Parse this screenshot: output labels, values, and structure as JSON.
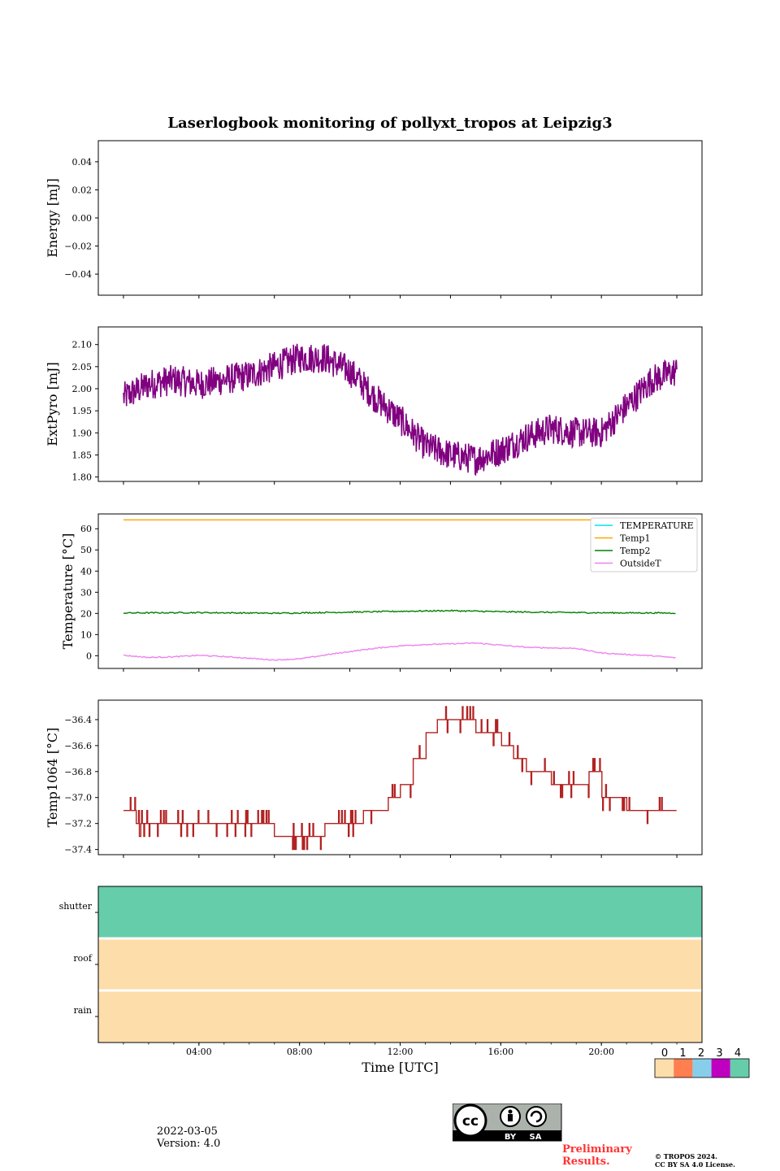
{
  "title": "Laserlogbook monitoring of pollyxt_tropos at Leipzig3",
  "footer": {
    "date": "2022-03-05",
    "version": "Version: 4.0",
    "preliminary_line1": "Preliminary",
    "preliminary_line2": "Results.",
    "copyright_line1": "© TROPOS 2024.",
    "copyright_line2": "CC BY SA 4.0 License.",
    "license_badge": {
      "icon": "cc-by-sa-icon",
      "by": "BY",
      "sa": "SA"
    }
  },
  "colors": {
    "extpyro": "#800080",
    "temperature": "#00e5ee",
    "temp1": "#ffa500",
    "temp2": "#008000",
    "outsideT": "#ee82ee",
    "temp1064": "#b22222"
  },
  "chart_data": [
    {
      "type": "line",
      "ylabel": "Energy [mJ]",
      "ylim": [
        -0.055,
        0.055
      ],
      "yticks": [
        "0.04",
        "0.02",
        "0.00",
        "−0.02",
        "−0.04"
      ],
      "ytick_values": [
        0.04,
        0.02,
        0.0,
        -0.02,
        -0.04
      ],
      "series": []
    },
    {
      "type": "line",
      "ylabel": "ExtPyro [mJ]",
      "ylim": [
        1.79,
        2.14
      ],
      "yticks": [
        "2.10",
        "2.05",
        "2.00",
        "1.95",
        "1.90",
        "1.85",
        "1.80"
      ],
      "ytick_values": [
        2.1,
        2.05,
        2.0,
        1.95,
        1.9,
        1.85,
        1.8
      ],
      "series": [
        {
          "name": "ExtPyro",
          "color": "#800080",
          "x": [
            1,
            2,
            3,
            4,
            5,
            6,
            7,
            8,
            9,
            10,
            11,
            12,
            13,
            14,
            15,
            16,
            17,
            18,
            19,
            20,
            21,
            22,
            23
          ],
          "y": [
            1.98,
            2.01,
            2.02,
            2.01,
            2.02,
            2.03,
            2.05,
            2.07,
            2.07,
            2.04,
            1.98,
            1.93,
            1.87,
            1.85,
            1.84,
            1.86,
            1.89,
            1.91,
            1.9,
            1.9,
            1.96,
            2.02,
            2.04
          ]
        }
      ]
    },
    {
      "type": "line",
      "ylabel": "Temperature [°C]",
      "ylim": [
        -6,
        67
      ],
      "yticks": [
        "60",
        "50",
        "40",
        "30",
        "20",
        "10",
        "0"
      ],
      "ytick_values": [
        60,
        50,
        40,
        30,
        20,
        10,
        0
      ],
      "legend_position": "top-right",
      "series": [
        {
          "name": "TEMPERATURE",
          "color": "#00e5ee",
          "x": [],
          "y": []
        },
        {
          "name": "Temp1",
          "color": "#ffa500",
          "x": [
            1,
            23
          ],
          "y": [
            64.2,
            64.2
          ]
        },
        {
          "name": "Temp2",
          "color": "#008000",
          "x": [
            1,
            4,
            7,
            10,
            12,
            14,
            16,
            18,
            20,
            23
          ],
          "y": [
            20.2,
            20.4,
            20.1,
            20.6,
            21.0,
            21.3,
            20.8,
            20.5,
            20.3,
            20.2
          ]
        },
        {
          "name": "OutsideT",
          "color": "#ee82ee",
          "x": [
            1,
            2,
            3,
            4,
            5,
            6,
            7,
            8,
            9,
            10,
            11,
            12,
            13,
            14,
            15,
            16,
            17,
            18,
            19,
            20,
            21,
            22,
            23
          ],
          "y": [
            0.2,
            -0.8,
            -0.5,
            0.2,
            -0.4,
            -1.2,
            -2.0,
            -1.5,
            0.3,
            2.0,
            3.5,
            4.7,
            5.3,
            5.6,
            6.0,
            5.0,
            4.0,
            3.7,
            3.5,
            1.3,
            0.6,
            0.0,
            -1.0
          ]
        }
      ]
    },
    {
      "type": "line",
      "ylabel": "Temp1064 [°C]",
      "ylim": [
        -37.44,
        -36.25
      ],
      "yticks": [
        "−36.4",
        "−36.6",
        "−36.8",
        "−37.0",
        "−37.2",
        "−37.4"
      ],
      "ytick_values": [
        -36.4,
        -36.6,
        -36.8,
        -37.0,
        -37.2,
        -37.4
      ],
      "series": [
        {
          "name": "Temp1064",
          "color": "#b22222",
          "x": [
            1,
            1.5,
            2,
            3,
            4,
            5,
            6,
            7,
            8,
            9,
            10,
            10.5,
            11,
            11.5,
            12,
            12.5,
            13,
            13.5,
            14,
            14.5,
            15,
            15.5,
            16,
            16.5,
            17,
            17.5,
            18,
            19,
            19.5,
            20,
            21,
            22,
            23
          ],
          "y": [
            -37.1,
            -37.2,
            -37.2,
            -37.2,
            -37.2,
            -37.2,
            -37.2,
            -37.3,
            -37.3,
            -37.2,
            -37.2,
            -37.1,
            -37.1,
            -37.0,
            -36.9,
            -36.7,
            -36.5,
            -36.4,
            -36.4,
            -36.4,
            -36.5,
            -36.5,
            -36.6,
            -36.7,
            -36.8,
            -36.8,
            -36.9,
            -36.9,
            -36.8,
            -37.0,
            -37.1,
            -37.1,
            -37.1
          ]
        }
      ]
    },
    {
      "type": "heatmap",
      "rows": [
        "shutter",
        "roof",
        "rain"
      ],
      "row_values": [
        4,
        0,
        0
      ],
      "xlabel": "Time [UTC]",
      "xlim": [
        0,
        24
      ],
      "xticks": [
        "04:00",
        "08:00",
        "12:00",
        "16:00",
        "20:00"
      ],
      "xtick_values": [
        4,
        8,
        12,
        16,
        20
      ],
      "colorbar": {
        "ticks": [
          "0",
          "1",
          "2",
          "3",
          "4"
        ],
        "colors": [
          "#fddeab",
          "#ff7f50",
          "#87ceeb",
          "#c000c0",
          "#66cdaa"
        ]
      }
    }
  ]
}
